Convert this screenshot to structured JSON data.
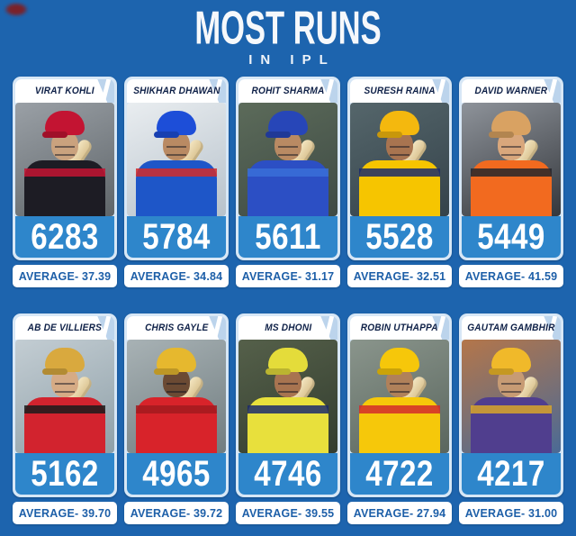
{
  "page": {
    "bg": "#1d64ae",
    "title": "MOST RUNS",
    "subtitle": "IN IPL",
    "accent_blue": "#2e86cb",
    "card_frame": "#d7e7f6",
    "name_color": "#0f2148",
    "average_color": "#1d5fa8"
  },
  "chart_data": {
    "type": "table",
    "title": "MOST RUNS",
    "subtitle": "IN IPL",
    "columns": [
      "player",
      "runs",
      "average"
    ],
    "rows": [
      [
        "VIRAT KOHLI",
        6283,
        37.39
      ],
      [
        "SHIKHAR DHAWAN",
        5784,
        34.84
      ],
      [
        "ROHIT SHARMA",
        5611,
        31.17
      ],
      [
        "SURESH RAINA",
        5528,
        32.51
      ],
      [
        "DAVID WARNER",
        5449,
        41.59
      ],
      [
        "AB DE VILLIERS",
        5162,
        39.7
      ],
      [
        "CHRIS GAYLE",
        4965,
        39.72
      ],
      [
        "MS DHONI",
        4746,
        39.55
      ],
      [
        "ROBIN UTHAPPA",
        4722,
        27.94
      ],
      [
        "GAUTAM GAMBHIR",
        4217,
        31.0
      ]
    ]
  },
  "players": [
    {
      "name": "VIRAT KOHLI",
      "runs": "6283",
      "average": "AVERAGE- 37.39",
      "photo": {
        "bg1": "#9aa0a6",
        "bg2": "#5f6569",
        "helmet": "#c31432",
        "jersey": "#1d1c24",
        "accent": "#c31432",
        "skin": "#caa27e"
      }
    },
    {
      "name": "SHIKHAR DHAWAN",
      "runs": "5784",
      "average": "AVERAGE- 34.84",
      "photo": {
        "bg1": "#e9edf0",
        "bg2": "#b7c2cb",
        "helmet": "#1d4ed8",
        "jersey": "#1e56c8",
        "accent": "#d22b2b",
        "skin": "#b98a63"
      }
    },
    {
      "name": "ROHIT SHARMA",
      "runs": "5611",
      "average": "AVERAGE- 31.17",
      "photo": {
        "bg1": "#5c6b5a",
        "bg2": "#3e4a44",
        "helmet": "#2746b8",
        "jersey": "#2c4fc4",
        "accent": "#3a6fd8",
        "skin": "#b98a63"
      }
    },
    {
      "name": "SURESH RAINA",
      "runs": "5528",
      "average": "AVERAGE- 32.51",
      "photo": {
        "bg1": "#55666b",
        "bg2": "#34424a",
        "helmet": "#f4b80e",
        "jersey": "#f6c500",
        "accent": "#1b2a6b",
        "skin": "#a87450"
      }
    },
    {
      "name": "DAVID WARNER",
      "runs": "5449",
      "average": "AVERAGE- 41.59",
      "photo": {
        "bg1": "#8e939a",
        "bg2": "#34373c",
        "helmet": "#d9a262",
        "jersey": "#f26a1f",
        "accent": "#26262b",
        "skin": "#d9a77c"
      }
    },
    {
      "name": "AB DE VILLIERS",
      "runs": "5162",
      "average": "AVERAGE- 39.70",
      "photo": {
        "bg1": "#c3cdd3",
        "bg2": "#8fa0a8",
        "helmet": "#d9a93e",
        "jersey": "#d2232e",
        "accent": "#1b1b1b",
        "skin": "#d6ab85"
      }
    },
    {
      "name": "CHRIS GAYLE",
      "runs": "4965",
      "average": "AVERAGE- 39.72",
      "photo": {
        "bg1": "#a8b2b5",
        "bg2": "#717d80",
        "helmet": "#e6b82e",
        "jersey": "#d8232a",
        "accent": "#a31a1f",
        "skin": "#6b4a33"
      }
    },
    {
      "name": "MS DHONI",
      "runs": "4746",
      "average": "AVERAGE- 39.55",
      "photo": {
        "bg1": "#55604a",
        "bg2": "#333d2f",
        "helmet": "#e4dc3a",
        "jersey": "#e8e03c",
        "accent": "#1b2a6b",
        "skin": "#a87450"
      }
    },
    {
      "name": "ROBIN UTHAPPA",
      "runs": "4722",
      "average": "AVERAGE- 27.94",
      "photo": {
        "bg1": "#8a958c",
        "bg2": "#5a665e",
        "helmet": "#f6c70a",
        "jersey": "#f6c80a",
        "accent": "#d22b2b",
        "skin": "#b0815a"
      }
    },
    {
      "name": "GAUTAM GAMBHIR",
      "runs": "4217",
      "average": "AVERAGE- 31.00",
      "photo": {
        "bg1": "#b4764a",
        "bg2": "#4a6a96",
        "helmet": "#f0b92a",
        "jersey": "#503e8e",
        "accent": "#d8a62a",
        "skin": "#c79b74"
      }
    }
  ]
}
